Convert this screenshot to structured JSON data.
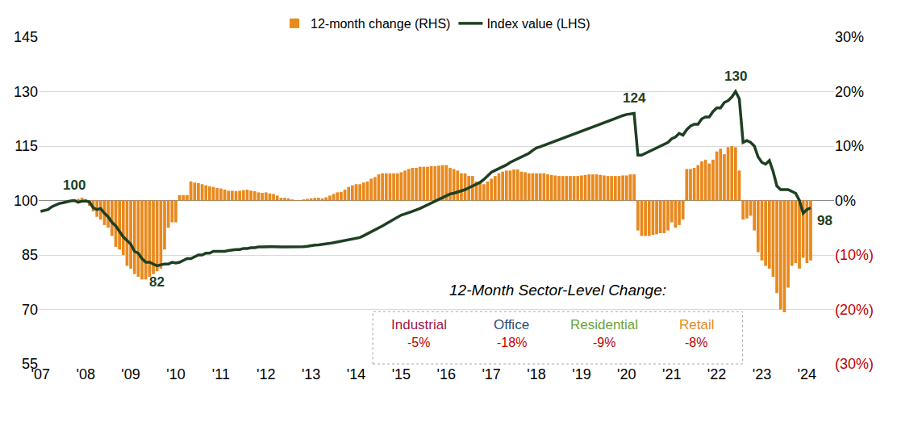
{
  "chart_data": {
    "type": "bar",
    "categories": [
      "'07",
      null,
      null,
      null,
      null,
      null,
      null,
      null,
      null,
      null,
      null,
      null,
      "'08",
      null,
      null,
      null,
      null,
      null,
      null,
      null,
      null,
      null,
      null,
      null,
      "'09",
      null,
      null,
      null,
      null,
      null,
      null,
      null,
      null,
      null,
      null,
      null,
      "'10",
      null,
      null,
      null,
      null,
      null,
      null,
      null,
      null,
      null,
      null,
      null,
      "'11",
      null,
      null,
      null,
      null,
      null,
      null,
      null,
      null,
      null,
      null,
      null,
      "'12",
      null,
      null,
      null,
      null,
      null,
      null,
      null,
      null,
      null,
      null,
      null,
      "'13",
      null,
      null,
      null,
      null,
      null,
      null,
      null,
      null,
      null,
      null,
      null,
      "'14",
      null,
      null,
      null,
      null,
      null,
      null,
      null,
      null,
      null,
      null,
      null,
      "'15",
      null,
      null,
      null,
      null,
      null,
      null,
      null,
      null,
      null,
      null,
      null,
      "'16",
      null,
      null,
      null,
      null,
      null,
      null,
      null,
      null,
      null,
      null,
      null,
      "'17",
      null,
      null,
      null,
      null,
      null,
      null,
      null,
      null,
      null,
      null,
      null,
      "'18",
      null,
      null,
      null,
      null,
      null,
      null,
      null,
      null,
      null,
      null,
      null,
      "'19",
      null,
      null,
      null,
      null,
      null,
      null,
      null,
      null,
      null,
      null,
      null,
      "'20",
      null,
      null,
      null,
      null,
      null,
      null,
      null,
      null,
      null,
      null,
      null,
      "'21",
      null,
      null,
      null,
      null,
      null,
      null,
      null,
      null,
      null,
      null,
      null,
      "'22",
      null,
      null,
      null,
      null,
      null,
      null,
      null,
      null,
      null,
      null,
      null,
      "'23",
      null,
      null,
      null,
      null,
      null,
      null,
      null,
      null,
      null,
      null,
      null,
      "'24",
      null
    ],
    "series": [
      {
        "name": "12-month change (RHS)",
        "type": "bar",
        "axis": "y2",
        "color": "#E8891E",
        "values": [
          null,
          null,
          null,
          null,
          null,
          null,
          null,
          null,
          null,
          null,
          0.3,
          0.5,
          0.2,
          -1,
          -2,
          -3,
          -3.5,
          -4.5,
          -5,
          -6.5,
          -8.5,
          -9,
          -10,
          -12,
          -12.5,
          -13.5,
          -14,
          -14.5,
          -14.5,
          -14,
          -13.5,
          -13,
          -12.5,
          -9,
          -5,
          -4,
          -4,
          1,
          1,
          1,
          3.5,
          3.3,
          3.2,
          3,
          2.8,
          2.6,
          2.5,
          2.3,
          2.2,
          2,
          1.8,
          1.8,
          1.7,
          1.8,
          1.9,
          2,
          1.8,
          1.7,
          1.5,
          1.4,
          1.5,
          1.3,
          1.2,
          0.9,
          0.5,
          0.5,
          0.4,
          0.2,
          0.1,
          0.1,
          0.2,
          0.3,
          0.4,
          0.5,
          0.5,
          0.4,
          0.6,
          0.9,
          1.2,
          1.5,
          1.6,
          2,
          2.5,
          2.8,
          3,
          3,
          3.3,
          3.5,
          4,
          4.3,
          4.8,
          5,
          5,
          5,
          5,
          5,
          5.2,
          5.5,
          5.8,
          6,
          6,
          6.2,
          6.2,
          6.2,
          6.3,
          6.3,
          6.4,
          6.5,
          6.5,
          6,
          5.8,
          5.5,
          5,
          5,
          4.5,
          4.5,
          3.5,
          3.5,
          3,
          3.5,
          4,
          4.5,
          5,
          5.3,
          5.5,
          5.5,
          5.7,
          5.7,
          5.3,
          5.2,
          5,
          5,
          5,
          5,
          5,
          4.8,
          4.7,
          4.6,
          4.5,
          4.5,
          4.5,
          4.5,
          4.5,
          4.5,
          4.6,
          4.7,
          4.8,
          4.8,
          4.8,
          4.7,
          4.6,
          4.5,
          4.5,
          4.5,
          4.5,
          4.6,
          4.6,
          4.8,
          4.8,
          -5.5,
          -6.5,
          -6.5,
          -6.5,
          -6.3,
          -6.2,
          -6,
          -6,
          -5.5,
          -4,
          -5,
          -4.5,
          -3.5,
          5.8,
          5.8,
          6,
          6.5,
          7.2,
          7.5,
          6.8,
          7.5,
          9,
          9.5,
          8.5,
          9.8,
          10,
          9.8,
          5.5,
          -3.5,
          -3.3,
          -2.8,
          -5.5,
          -9.5,
          -11,
          -12,
          -12.5,
          -14,
          -17,
          -20,
          -20.5,
          -16,
          -12,
          -11.5,
          -12.5,
          -10.5,
          -11.5,
          -11
        ]
      },
      {
        "name": "Index value (LHS)",
        "type": "line",
        "color": "#1E3F22",
        "values": [
          97,
          97.2,
          97.5,
          98.3,
          98.8,
          99.2,
          99.4,
          99.7,
          99.9,
          100,
          99.5,
          99.8,
          99.9,
          99.6,
          98,
          97.5,
          97.8,
          96.5,
          95.5,
          94,
          93,
          91.5,
          90,
          89,
          88,
          86,
          85.5,
          84,
          83,
          83,
          82.5,
          82,
          82.3,
          82.5,
          82.5,
          83,
          82.8,
          83,
          83.5,
          84,
          84,
          84.5,
          85,
          85,
          85.5,
          85.5,
          86,
          86,
          86,
          86,
          86.2,
          86.4,
          86.5,
          86.5,
          86.8,
          86.8,
          87,
          87,
          87.2,
          87.2,
          87.3,
          87.3,
          87.3,
          87.2,
          87.2,
          87.2,
          87.2,
          87.2,
          87.2,
          87.3,
          87.3,
          87.4,
          87.6,
          87.7,
          87.8,
          87.9,
          88,
          88.2,
          88.4,
          88.6,
          88.8,
          89,
          89.2,
          89.4,
          89.5,
          89.8,
          90.3,
          90.8,
          91.3,
          91.8,
          92.5,
          93,
          93.6,
          94.2,
          94.8,
          95.4,
          96,
          96.3,
          96.6,
          97,
          97.4,
          97.8,
          98.3,
          98.8,
          99.3,
          99.8,
          100.3,
          100.9,
          101.5,
          101.8,
          102,
          102.3,
          102.6,
          103,
          103.5,
          104,
          104.5,
          105,
          105.8,
          106.8,
          107.8,
          108.3,
          108.8,
          109.2,
          109.8,
          110.5,
          111,
          111.5,
          112,
          112.5,
          113,
          113.8,
          114.5,
          114.8,
          115.2,
          115.6,
          116,
          116.4,
          116.8,
          117.2,
          117.6,
          118,
          118.4,
          118.8,
          119.1,
          119.5,
          119.9,
          120.3,
          120.7,
          121.1,
          121.5,
          121.8,
          122.2,
          122.6,
          123,
          123.4,
          123.7,
          123.9,
          124,
          112.5,
          112.5,
          113,
          113.5,
          114,
          114.5,
          115,
          115.5,
          116,
          117,
          117.5,
          118.5,
          118,
          119.5,
          120.5,
          121,
          121,
          122.5,
          123,
          123,
          124.5,
          125.5,
          125.5,
          127,
          127.5,
          128.5,
          130,
          128,
          116,
          116.5,
          116,
          115,
          112,
          110.5,
          110,
          111,
          108,
          104,
          103,
          103,
          103,
          102.5,
          102,
          100,
          96.5,
          97.5,
          98
        ]
      }
    ],
    "ylim": [
      55,
      145
    ],
    "yticks": [
      55,
      70,
      85,
      100,
      115,
      130,
      145
    ],
    "y2lim": [
      -30,
      30
    ],
    "y2ticks": [
      {
        "value": -30,
        "label": "(30%)"
      },
      {
        "value": -20,
        "label": "(20%)"
      },
      {
        "value": -10,
        "label": "(10%)"
      },
      {
        "value": 0,
        "label": "0%"
      },
      {
        "value": 10,
        "label": "10%"
      },
      {
        "value": 20,
        "label": "20%"
      },
      {
        "value": 30,
        "label": "30%"
      }
    ],
    "grid": true,
    "legend": "top",
    "annotations": [
      {
        "text": "100",
        "index": 9,
        "value": 100
      },
      {
        "text": "82",
        "index": 31,
        "value": 82
      },
      {
        "text": "124",
        "index": 158,
        "value": 124
      },
      {
        "text": "130",
        "index": 185,
        "value": 130
      },
      {
        "text": "98",
        "index": 205,
        "value": 98
      }
    ],
    "sector_change": {
      "title": "12-Month Sector-Level Change:",
      "names": [
        "Industrial",
        "Office",
        "Residential",
        "Retail"
      ],
      "colors": [
        "#A3174C",
        "#1F4E79",
        "#6AA336",
        "#E38B1E"
      ],
      "values": [
        -5,
        -18,
        -9,
        -8
      ],
      "value_labels": [
        "-5%",
        "-18%",
        "-9%",
        "-8%"
      ]
    }
  }
}
